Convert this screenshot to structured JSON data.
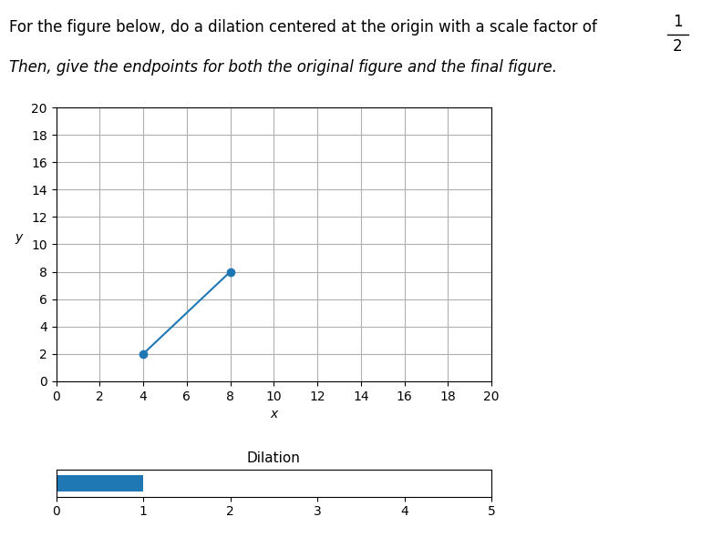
{
  "chart_data": [
    {
      "type": "line",
      "title": "For the figure below, do a dilation centered at the origin with a scale factor of",
      "subtitle": "Then, give the endpoints for both the original figure and the final figure.",
      "annotations": [
        "1",
        "2"
      ],
      "xlabel": "x",
      "ylabel": "y",
      "x": [
        4,
        8
      ],
      "values": [
        2,
        8
      ],
      "marker": "o",
      "xlim": [
        0,
        20
      ],
      "ylim": [
        0,
        20
      ],
      "xticks": [
        0,
        2,
        4,
        6,
        8,
        10,
        12,
        14,
        16,
        18,
        20
      ],
      "yticks": [
        0,
        2,
        4,
        6,
        8,
        10,
        12,
        14,
        16,
        18,
        20
      ],
      "grid": true
    },
    {
      "type": "bar",
      "orientation": "horizontal",
      "title": "Dilation",
      "categories": [
        null
      ],
      "values": [
        1
      ],
      "xlim": [
        0,
        5
      ],
      "xticks": [
        0,
        1,
        2,
        3,
        4,
        5
      ],
      "tick_labels": "x"
    }
  ]
}
